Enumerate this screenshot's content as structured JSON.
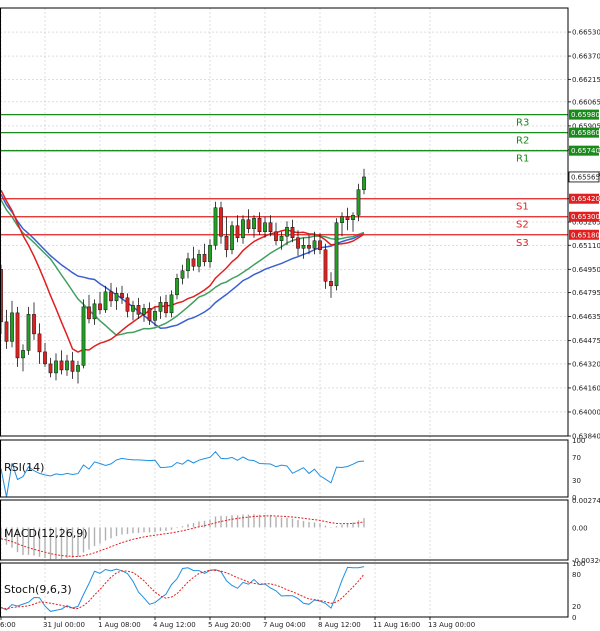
{
  "chart_data": {
    "type": "candlestick",
    "instrument_decimals": 5,
    "price_axis": {
      "range": [
        0.6384,
        0.6669
      ],
      "ticks": [
        0.6384,
        0.64,
        0.6416,
        0.6432,
        0.64475,
        0.64635,
        0.64795,
        0.6495,
        0.6511,
        0.65265,
        0.6542,
        0.65585,
        0.65745,
        0.65905,
        0.66065,
        0.66215,
        0.6637,
        0.6653
      ],
      "tick_labels": [
        "0.63840",
        "0.64000",
        "0.64160",
        "0.64320",
        "0.64475",
        "0.64635",
        "0.64795",
        "0.64950",
        "0.65110",
        "0.65265",
        "0.65420",
        "0.65585",
        "0.65745",
        "0.65905",
        "0.66065",
        "0.66215",
        "0.66370",
        "0.66530"
      ]
    },
    "time_axis": {
      "labels": [
        "6:00",
        "31 Jul 00:00",
        "1 Aug 08:00",
        "4 Aug 12:00",
        "5 Aug 20:00",
        "7 Aug 04:00",
        "8 Aug 12:00",
        "11 Aug 16:00",
        "13 Aug 00:00"
      ],
      "label_bar_index": [
        0,
        8,
        18,
        28,
        38,
        48,
        58,
        68,
        78
      ]
    },
    "levels": [
      {
        "name": "R3",
        "value": 0.6598,
        "label": "0.65980",
        "color": "#1a8a1a"
      },
      {
        "name": "R2",
        "value": 0.6586,
        "label": "0.65860",
        "color": "#1a8a1a"
      },
      {
        "name": "R1",
        "value": 0.6574,
        "label": "0.65740",
        "color": "#1a8a1a"
      },
      {
        "name": "S1",
        "value": 0.6542,
        "label": "0.65420",
        "color": "#e02020"
      },
      {
        "name": "S2",
        "value": 0.653,
        "label": "0.65300",
        "color": "#e02020"
      },
      {
        "name": "S3",
        "value": 0.6518,
        "label": "0.65180",
        "color": "#e02020"
      }
    ],
    "current_price": {
      "value": 0.65565,
      "label": "0.65565"
    },
    "colors": {
      "up": "#22a022",
      "down": "#dd2222",
      "wick": "#111111",
      "ma_fast": "#e02020",
      "ma_mid": "#40a060",
      "ma_slow": "#3a60d0",
      "rsi": "#2090e0",
      "macd": "#e02020",
      "stoch_k": "#2090e0",
      "stoch_d": "#e02020",
      "grid": "#c9c9c9"
    },
    "candles": [
      [
        0.6495,
        0.6498,
        0.6452,
        0.646
      ],
      [
        0.646,
        0.6468,
        0.6442,
        0.6447
      ],
      [
        0.6447,
        0.6474,
        0.6443,
        0.6466
      ],
      [
        0.6466,
        0.647,
        0.643,
        0.6436
      ],
      [
        0.6436,
        0.6445,
        0.6427,
        0.6441
      ],
      [
        0.6441,
        0.647,
        0.6438,
        0.6465
      ],
      [
        0.6465,
        0.6473,
        0.6448,
        0.6452
      ],
      [
        0.6452,
        0.6459,
        0.6432,
        0.644
      ],
      [
        0.644,
        0.6446,
        0.643,
        0.6432
      ],
      [
        0.6432,
        0.6436,
        0.6423,
        0.6426
      ],
      [
        0.6426,
        0.6439,
        0.6421,
        0.6434
      ],
      [
        0.6434,
        0.6441,
        0.6425,
        0.6428
      ],
      [
        0.6428,
        0.6438,
        0.6424,
        0.6434
      ],
      [
        0.6434,
        0.644,
        0.6422,
        0.6427
      ],
      [
        0.6427,
        0.6434,
        0.6419,
        0.6431
      ],
      [
        0.6431,
        0.6475,
        0.6429,
        0.647
      ],
      [
        0.647,
        0.6478,
        0.6459,
        0.6462
      ],
      [
        0.6462,
        0.6475,
        0.6458,
        0.6472
      ],
      [
        0.6472,
        0.648,
        0.6465,
        0.6468
      ],
      [
        0.6468,
        0.6484,
        0.6466,
        0.648
      ],
      [
        0.648,
        0.6486,
        0.647,
        0.6474
      ],
      [
        0.6474,
        0.6483,
        0.6468,
        0.6479
      ],
      [
        0.6479,
        0.6484,
        0.6472,
        0.6476
      ],
      [
        0.6476,
        0.6479,
        0.6463,
        0.6467
      ],
      [
        0.6467,
        0.6474,
        0.6461,
        0.6471
      ],
      [
        0.6471,
        0.6476,
        0.6462,
        0.6465
      ],
      [
        0.6465,
        0.6472,
        0.646,
        0.6469
      ],
      [
        0.6469,
        0.6473,
        0.6458,
        0.6461
      ],
      [
        0.6461,
        0.647,
        0.6457,
        0.6467
      ],
      [
        0.6467,
        0.6477,
        0.6462,
        0.6473
      ],
      [
        0.6473,
        0.6478,
        0.6463,
        0.6466
      ],
      [
        0.6466,
        0.6481,
        0.6463,
        0.6478
      ],
      [
        0.6478,
        0.6492,
        0.6475,
        0.6489
      ],
      [
        0.6489,
        0.6498,
        0.6485,
        0.6494
      ],
      [
        0.6494,
        0.6506,
        0.6489,
        0.6502
      ],
      [
        0.6502,
        0.651,
        0.6494,
        0.6497
      ],
      [
        0.6497,
        0.6508,
        0.6493,
        0.6505
      ],
      [
        0.6505,
        0.6512,
        0.6497,
        0.65
      ],
      [
        0.65,
        0.6515,
        0.6496,
        0.6511
      ],
      [
        0.6511,
        0.654,
        0.6508,
        0.6536
      ],
      [
        0.6536,
        0.654,
        0.6512,
        0.6517
      ],
      [
        0.6517,
        0.653,
        0.6503,
        0.6508
      ],
      [
        0.6508,
        0.6527,
        0.6505,
        0.6524
      ],
      [
        0.6524,
        0.6531,
        0.6513,
        0.6516
      ],
      [
        0.6516,
        0.6531,
        0.6512,
        0.6528
      ],
      [
        0.6528,
        0.6535,
        0.6519,
        0.6522
      ],
      [
        0.6522,
        0.6531,
        0.6516,
        0.6529
      ],
      [
        0.6529,
        0.6533,
        0.6518,
        0.652
      ],
      [
        0.652,
        0.653,
        0.6516,
        0.6526
      ],
      [
        0.6526,
        0.6531,
        0.6517,
        0.652
      ],
      [
        0.652,
        0.6526,
        0.6511,
        0.6514
      ],
      [
        0.6514,
        0.652,
        0.6508,
        0.6517
      ],
      [
        0.6517,
        0.6527,
        0.6511,
        0.6523
      ],
      [
        0.6523,
        0.6528,
        0.6513,
        0.6516
      ],
      [
        0.6516,
        0.6521,
        0.6504,
        0.6509
      ],
      [
        0.6509,
        0.6516,
        0.6502,
        0.6511
      ],
      [
        0.6511,
        0.6518,
        0.6505,
        0.6509
      ],
      [
        0.6509,
        0.652,
        0.6505,
        0.6514
      ],
      [
        0.6514,
        0.6519,
        0.6505,
        0.6508
      ],
      [
        0.6508,
        0.6512,
        0.6482,
        0.6487
      ],
      [
        0.6487,
        0.6493,
        0.6476,
        0.6484
      ],
      [
        0.6484,
        0.6529,
        0.6481,
        0.6526
      ],
      [
        0.6526,
        0.6533,
        0.6517,
        0.653
      ],
      [
        0.653,
        0.6536,
        0.6521,
        0.6528
      ],
      [
        0.6528,
        0.6533,
        0.652,
        0.6531
      ],
      [
        0.6531,
        0.6552,
        0.6527,
        0.6548
      ],
      [
        0.6548,
        0.6562,
        0.6545,
        0.65565
      ]
    ],
    "rsi": {
      "period": 14,
      "ticks": [
        100,
        70,
        30,
        0
      ]
    },
    "macd": {
      "fast": 12,
      "slow": 26,
      "signal": 9,
      "tick_labels": [
        "0.002748",
        "0.00",
        "-0.003263"
      ],
      "range": [
        -0.003263,
        0.002748
      ]
    },
    "stoch": {
      "k": 9,
      "d": 6,
      "slowing": 3,
      "ticks": [
        100,
        80,
        20,
        0
      ]
    }
  },
  "panels": {
    "rsi_title": "RSI(14)",
    "macd_title": "MACD(12,26,9)",
    "stoch_title": "Stoch(9,6,3)"
  }
}
